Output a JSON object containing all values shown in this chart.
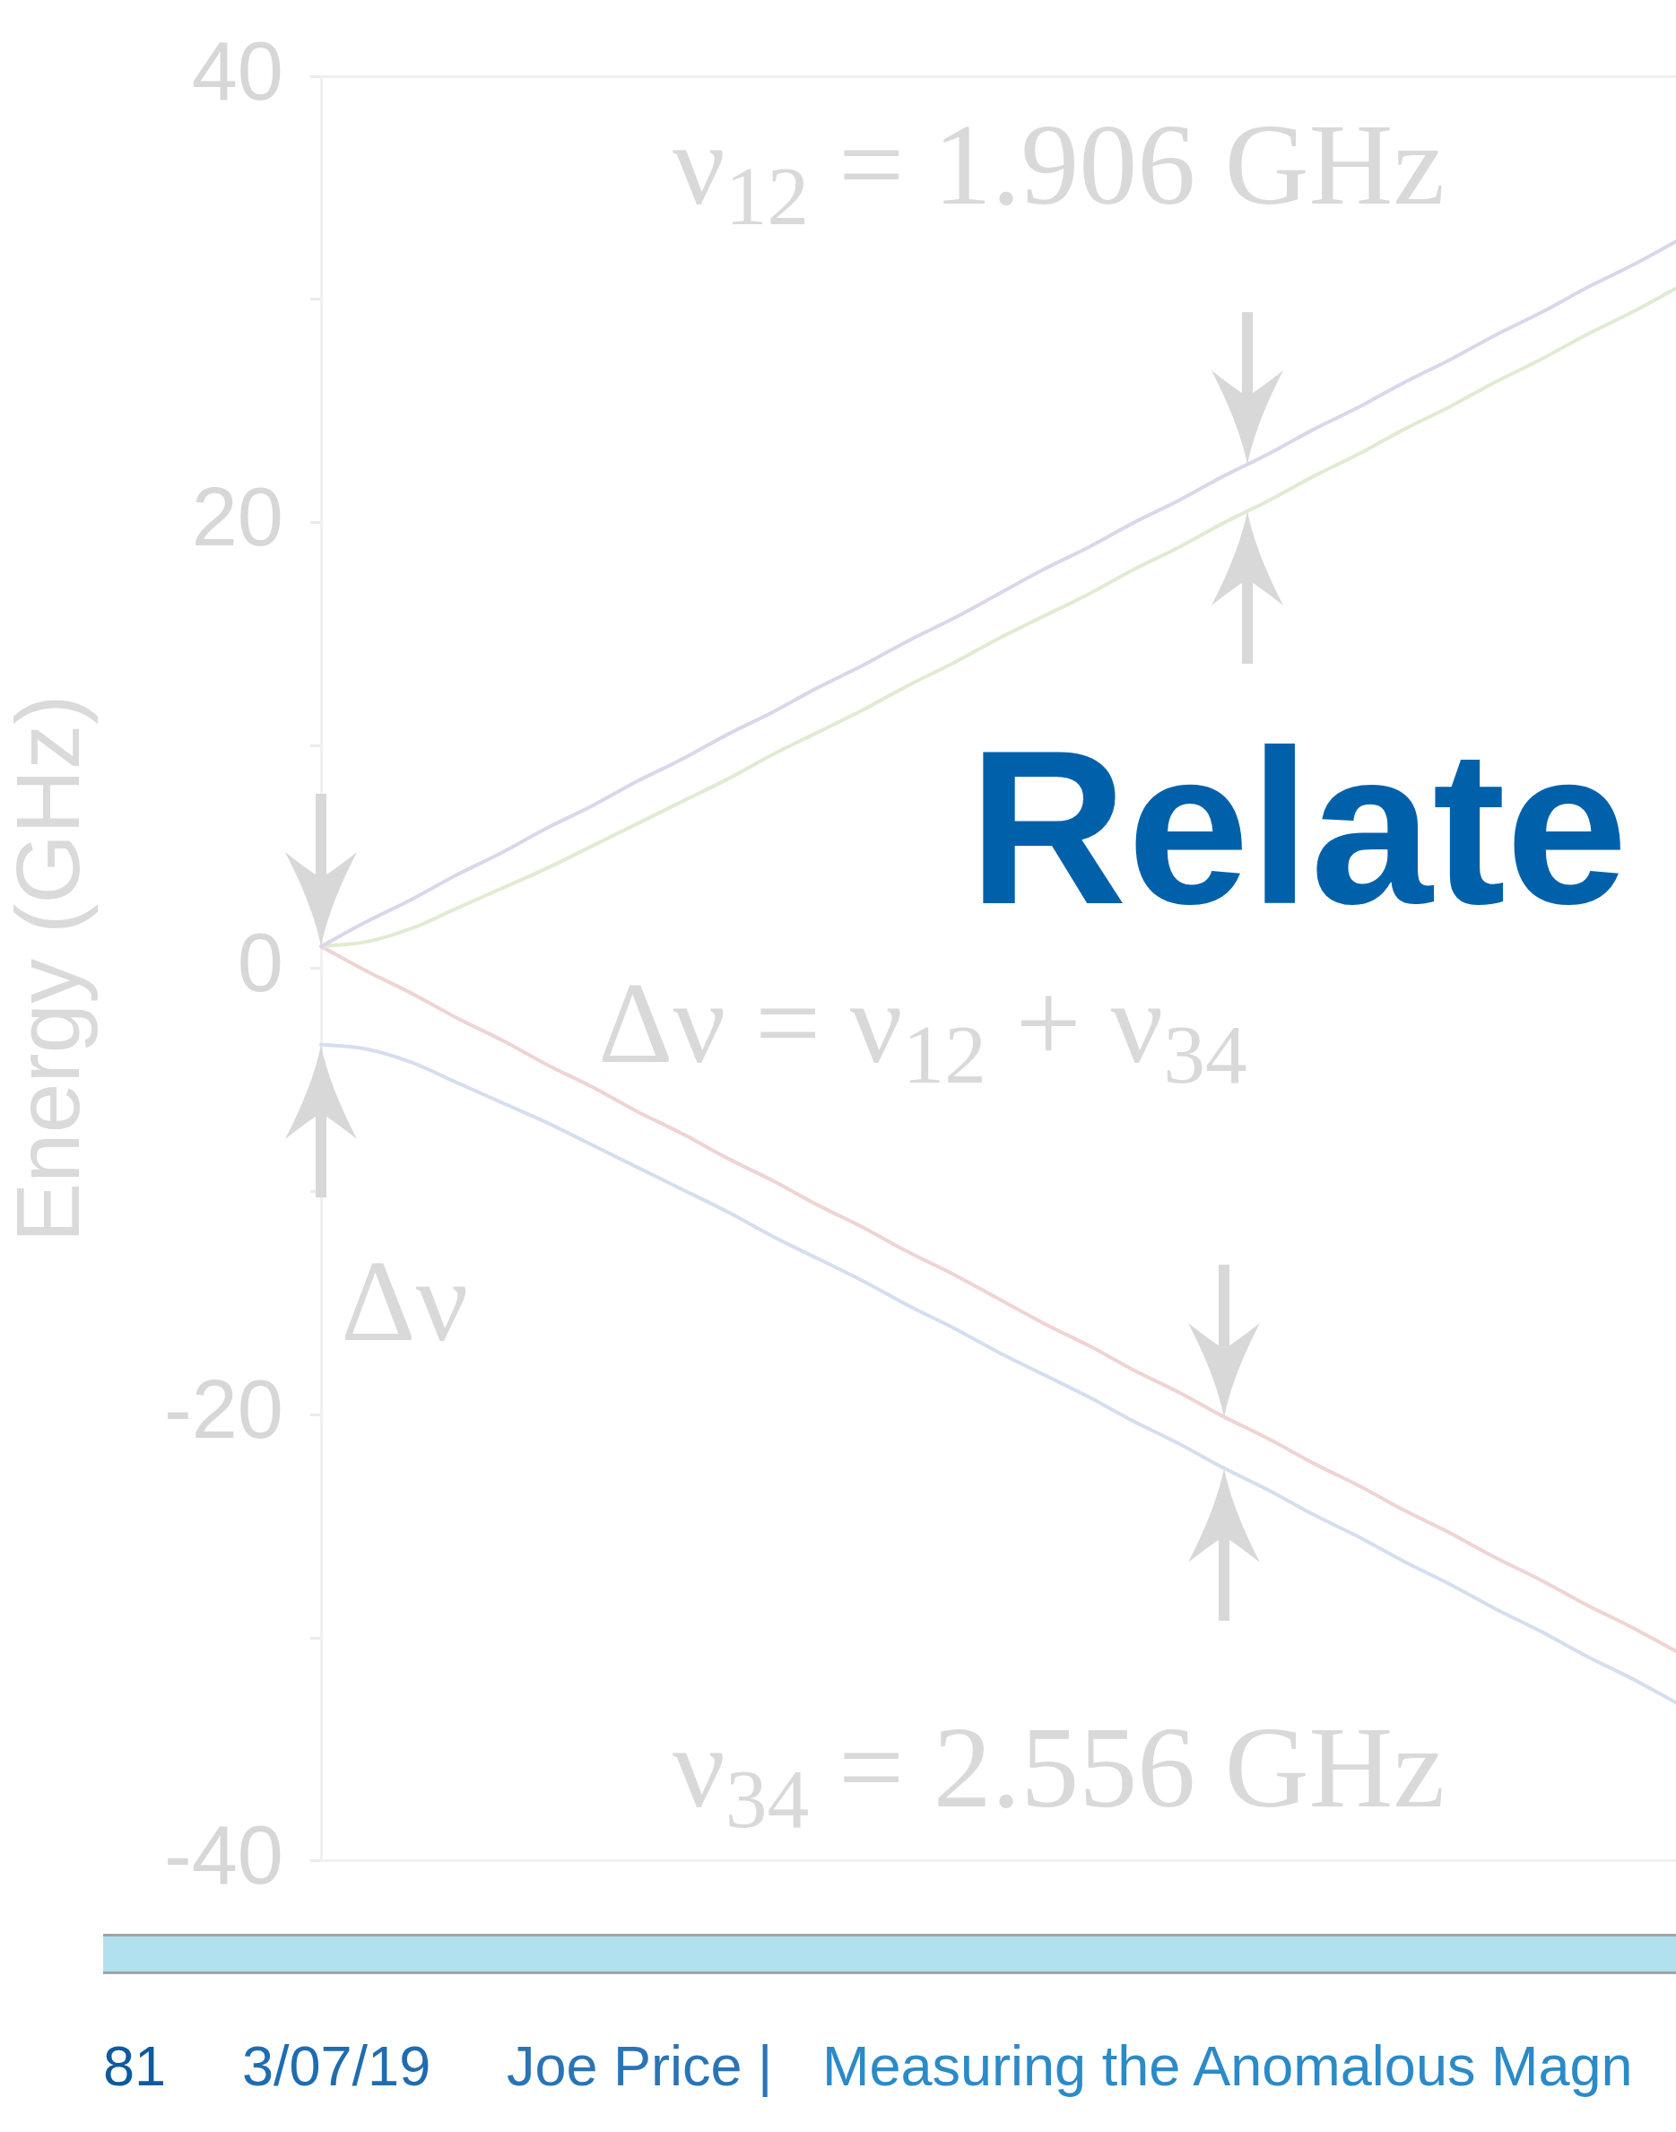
{
  "chart_data": {
    "type": "line",
    "title": "Relate",
    "ylabel": "Energy (GHz)",
    "categories": [
      null,
      null,
      null,
      null,
      null,
      null,
      null,
      null,
      null,
      null,
      null,
      null,
      null,
      null,
      null,
      null,
      null,
      null,
      null,
      null,
      null,
      null,
      null,
      null,
      null,
      null,
      null,
      null,
      null,
      null,
      null
    ],
    "series": [
      {
        "color": "#dcd5ec",
        "values": [
          1,
          2.1,
          3.1,
          4.2,
          5.2,
          6.3,
          7.3,
          8.4,
          9.4,
          10.5,
          11.5,
          12.6,
          13.6,
          14.7,
          15.7,
          16.8,
          17.9,
          18.9,
          20,
          21,
          22.1,
          23.1,
          24.2,
          25.2,
          26.3,
          27.3,
          28.4,
          29.4,
          30.5,
          31.5,
          32.6
        ]
      },
      {
        "color": "#e0ebd2",
        "values": [
          1,
          1.2,
          1.8,
          2.7,
          3.6,
          4.5,
          5.5,
          6.5,
          7.5,
          8.5,
          9.6,
          10.6,
          11.6,
          12.7,
          13.7,
          14.8,
          15.8,
          16.8,
          17.9,
          18.9,
          20,
          21,
          22.1,
          23.1,
          24.2,
          25.2,
          26.3,
          27.3,
          28.4,
          29.4,
          30.5
        ]
      },
      {
        "color": "#f0d3d3",
        "values": [
          1,
          -0.1,
          -1.1,
          -2.2,
          -3.2,
          -4.3,
          -5.3,
          -6.4,
          -7.4,
          -8.5,
          -9.5,
          -10.6,
          -11.6,
          -12.7,
          -13.7,
          -14.8,
          -15.9,
          -16.9,
          -18,
          -19,
          -20.1,
          -21.1,
          -22.2,
          -23.2,
          -24.3,
          -25.3,
          -26.4,
          -27.4,
          -28.5,
          -29.5,
          -30.6
        ]
      },
      {
        "color": "#d5def0",
        "values": [
          -3.4,
          -3.6,
          -4.2,
          -5.1,
          -6,
          -6.9,
          -7.9,
          -8.9,
          -9.9,
          -10.9,
          -12,
          -13,
          -14,
          -15.1,
          -16.1,
          -17.2,
          -18.2,
          -19.2,
          -20.3,
          -21.3,
          -22.4,
          -23.4,
          -24.5,
          -25.5,
          -26.6,
          -27.6,
          -28.7,
          -29.7,
          -30.8,
          -31.8,
          -32.9
        ]
      }
    ],
    "ylim": [
      -40,
      40
    ],
    "yticks": [
      -40,
      {
        "value": -30,
        "label": null
      },
      -20,
      {
        "value": -10,
        "label": null
      },
      0,
      {
        "value": 10,
        "label": null
      },
      20,
      {
        "value": 30,
        "label": null
      },
      40
    ],
    "tick_labels": "y",
    "marker": "none",
    "annotations": [
      "ν$_{12}$ = 1.906 GHz",
      "Δν = ν$_{12}$ + ν$_{34}$",
      "Δν",
      "ν$_{34}$ = 2.556 GHz",
      "81",
      "3/07/19",
      "Joe Price |",
      "Measuring the Anomalous Magn"
    ]
  }
}
